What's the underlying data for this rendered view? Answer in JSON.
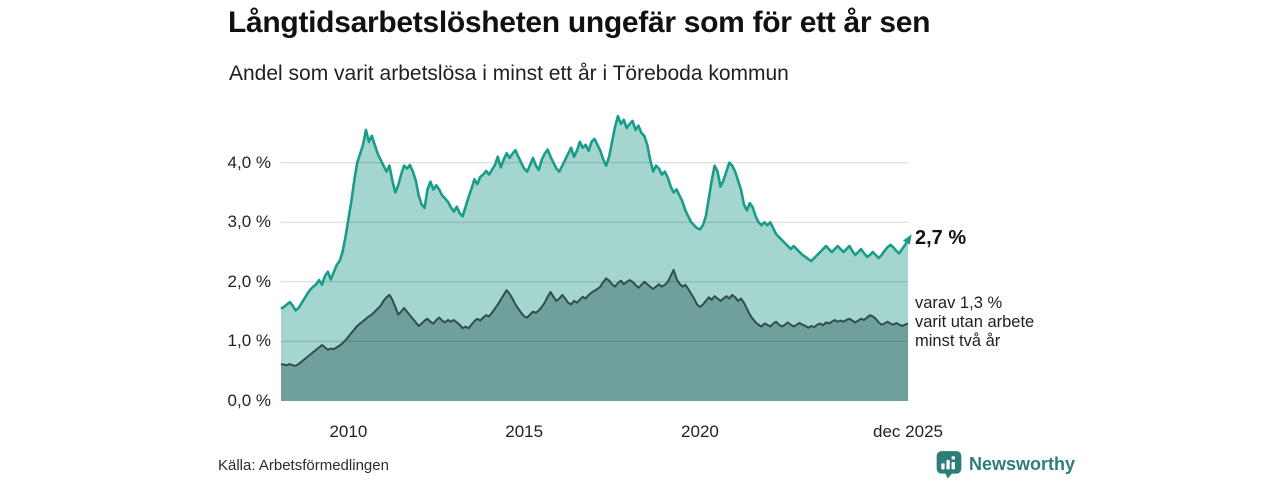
{
  "header": {
    "title": "Långtidsarbetslösheten ungefär som för ett år sen",
    "subtitle": "Andel som varit arbetslösa i minst ett år i Töreboda kommun"
  },
  "footer": {
    "source": "Källa: Arbetsförmedlingen",
    "brand": "Newsworthy"
  },
  "colors": {
    "total_line": "#1a9c8b",
    "total_fill": "#a4d5ce",
    "two_year_line": "#2f4f4c",
    "two_year_fill": "#6fa09b",
    "gridline": "rgba(0,0,0,0.16)",
    "brand_teal": "#2e7d79",
    "text": "#1a1a1a"
  },
  "chart_data": {
    "type": "area",
    "title": "Långtidsarbetslösheten ungefär som för ett år sen",
    "subtitle": "Andel som varit arbetslösa i minst ett år i Töreboda kommun",
    "unit": "%",
    "x_start_year": 2008.083,
    "x_end_year": 2025.917,
    "ylim": [
      0,
      4.8
    ],
    "grid": true,
    "y_ticks": [
      {
        "label": "0,0 %",
        "value": 0
      },
      {
        "label": "1,0 %",
        "value": 1
      },
      {
        "label": "2,0 %",
        "value": 2
      },
      {
        "label": "3,0 %",
        "value": 3
      },
      {
        "label": "4,0 %",
        "value": 4
      }
    ],
    "x_ticks": [
      {
        "label": "2010",
        "year": 2010
      },
      {
        "label": "2015",
        "year": 2015
      },
      {
        "label": "2020",
        "year": 2020
      },
      {
        "label": "dec 2025",
        "year": 2025.917
      }
    ],
    "annotations": {
      "end_label": "2,7 %",
      "end_value": 2.7,
      "lines": [
        "varav 1,3 %",
        "varit utan arbete",
        "minst två år"
      ]
    },
    "series": [
      {
        "name": "arbetslösa minst ett år",
        "end_value": 2.7,
        "values": [
          1.55,
          1.58,
          1.62,
          1.66,
          1.6,
          1.52,
          1.56,
          1.64,
          1.72,
          1.8,
          1.87,
          1.92,
          1.96,
          2.03,
          1.95,
          2.1,
          2.17,
          2.04,
          2.16,
          2.28,
          2.35,
          2.5,
          2.75,
          3.05,
          3.35,
          3.7,
          4.0,
          4.15,
          4.3,
          4.55,
          4.35,
          4.45,
          4.3,
          4.15,
          4.05,
          3.95,
          3.85,
          3.95,
          3.7,
          3.5,
          3.62,
          3.8,
          3.95,
          3.9,
          3.96,
          3.85,
          3.7,
          3.45,
          3.3,
          3.24,
          3.55,
          3.68,
          3.55,
          3.62,
          3.55,
          3.45,
          3.4,
          3.34,
          3.25,
          3.18,
          3.26,
          3.15,
          3.1,
          3.26,
          3.42,
          3.56,
          3.72,
          3.64,
          3.76,
          3.8,
          3.86,
          3.8,
          3.88,
          3.96,
          4.1,
          3.92,
          4.05,
          4.16,
          4.08,
          4.15,
          4.21,
          4.1,
          4.0,
          3.9,
          3.85,
          3.96,
          4.08,
          3.95,
          3.88,
          4.05,
          4.15,
          4.22,
          4.1,
          4.0,
          3.9,
          3.85,
          3.95,
          4.05,
          4.15,
          4.25,
          4.1,
          4.2,
          4.35,
          4.25,
          4.3,
          4.2,
          4.35,
          4.4,
          4.3,
          4.2,
          4.05,
          3.95,
          4.1,
          4.35,
          4.6,
          4.78,
          4.65,
          4.72,
          4.58,
          4.65,
          4.7,
          4.55,
          4.62,
          4.5,
          4.45,
          4.3,
          4.05,
          3.85,
          3.95,
          3.9,
          3.8,
          3.85,
          3.75,
          3.6,
          3.5,
          3.55,
          3.45,
          3.35,
          3.2,
          3.1,
          3.0,
          2.95,
          2.9,
          2.88,
          2.95,
          3.1,
          3.4,
          3.7,
          3.95,
          3.85,
          3.6,
          3.7,
          3.85,
          4.0,
          3.95,
          3.85,
          3.7,
          3.55,
          3.3,
          3.2,
          3.32,
          3.25,
          3.1,
          3.0,
          2.95,
          3.0,
          2.95,
          3.0,
          2.9,
          2.8,
          2.75,
          2.7,
          2.65,
          2.6,
          2.55,
          2.6,
          2.55,
          2.5,
          2.45,
          2.42,
          2.38,
          2.35,
          2.4,
          2.45,
          2.5,
          2.55,
          2.6,
          2.55,
          2.5,
          2.55,
          2.6,
          2.55,
          2.5,
          2.55,
          2.6,
          2.52,
          2.45,
          2.5,
          2.55,
          2.48,
          2.42,
          2.45,
          2.5,
          2.45,
          2.4,
          2.45,
          2.52,
          2.58,
          2.62,
          2.58,
          2.52,
          2.48,
          2.55,
          2.62,
          2.7
        ]
      },
      {
        "name": "varav utan arbete minst två år",
        "end_value": 1.3,
        "values": [
          0.62,
          0.61,
          0.6,
          0.62,
          0.6,
          0.59,
          0.62,
          0.66,
          0.7,
          0.74,
          0.78,
          0.82,
          0.86,
          0.9,
          0.94,
          0.9,
          0.86,
          0.88,
          0.87,
          0.9,
          0.93,
          0.97,
          1.02,
          1.08,
          1.14,
          1.2,
          1.26,
          1.3,
          1.34,
          1.38,
          1.42,
          1.45,
          1.5,
          1.55,
          1.6,
          1.68,
          1.74,
          1.78,
          1.7,
          1.58,
          1.45,
          1.5,
          1.56,
          1.5,
          1.44,
          1.38,
          1.32,
          1.26,
          1.3,
          1.35,
          1.38,
          1.33,
          1.3,
          1.36,
          1.4,
          1.35,
          1.32,
          1.36,
          1.33,
          1.36,
          1.32,
          1.28,
          1.22,
          1.25,
          1.22,
          1.28,
          1.34,
          1.38,
          1.35,
          1.4,
          1.44,
          1.42,
          1.48,
          1.55,
          1.62,
          1.7,
          1.78,
          1.86,
          1.8,
          1.72,
          1.62,
          1.55,
          1.48,
          1.42,
          1.4,
          1.45,
          1.5,
          1.48,
          1.52,
          1.58,
          1.65,
          1.75,
          1.83,
          1.75,
          1.68,
          1.72,
          1.78,
          1.72,
          1.65,
          1.62,
          1.68,
          1.65,
          1.7,
          1.75,
          1.72,
          1.78,
          1.82,
          1.85,
          1.88,
          1.92,
          2.0,
          2.06,
          2.02,
          1.96,
          1.92,
          1.98,
          2.02,
          1.96,
          2.0,
          2.03,
          2.0,
          1.95,
          1.9,
          1.95,
          2.0,
          1.96,
          1.92,
          1.88,
          1.92,
          1.96,
          1.92,
          1.95,
          2.0,
          2.1,
          2.2,
          2.05,
          1.97,
          1.92,
          1.95,
          1.88,
          1.8,
          1.72,
          1.62,
          1.58,
          1.62,
          1.68,
          1.74,
          1.7,
          1.76,
          1.72,
          1.68,
          1.72,
          1.76,
          1.72,
          1.78,
          1.74,
          1.68,
          1.72,
          1.65,
          1.55,
          1.45,
          1.38,
          1.32,
          1.28,
          1.25,
          1.3,
          1.28,
          1.25,
          1.3,
          1.33,
          1.28,
          1.25,
          1.28,
          1.32,
          1.28,
          1.25,
          1.28,
          1.31,
          1.28,
          1.26,
          1.23,
          1.26,
          1.24,
          1.28,
          1.3,
          1.27,
          1.32,
          1.3,
          1.33,
          1.36,
          1.33,
          1.35,
          1.33,
          1.36,
          1.38,
          1.35,
          1.32,
          1.35,
          1.38,
          1.36,
          1.4,
          1.44,
          1.42,
          1.38,
          1.32,
          1.28,
          1.3,
          1.33,
          1.3,
          1.28,
          1.31,
          1.28,
          1.26,
          1.28,
          1.3
        ]
      }
    ]
  }
}
